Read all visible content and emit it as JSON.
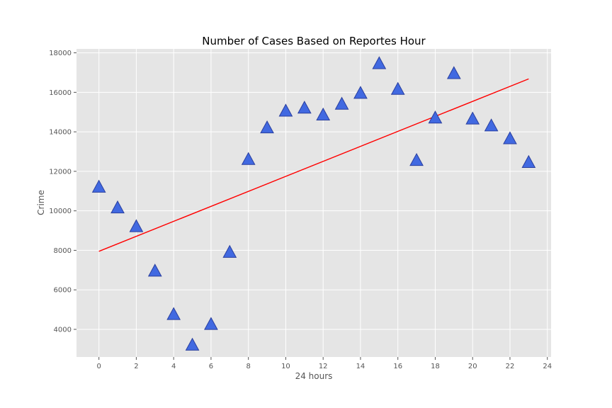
{
  "chart_data": {
    "type": "scatter",
    "title": "Number of Cases Based on Reportes Hour",
    "xlabel": "24 hours",
    "ylabel": "Crime",
    "xlim": [
      -1.2,
      24.2
    ],
    "ylim": [
      2600,
      18200
    ],
    "x_ticks": [
      0,
      2,
      4,
      6,
      8,
      10,
      12,
      14,
      16,
      18,
      20,
      22,
      24
    ],
    "y_ticks": [
      4000,
      6000,
      8000,
      10000,
      12000,
      14000,
      16000,
      18000
    ],
    "grid": true,
    "marker": "triangle",
    "colors": {
      "background": "#e5e5e5",
      "grid": "#ffffff",
      "marker_fill": "#4169e1",
      "marker_edge": "#2a3f9e",
      "trendline": "#ff0000"
    },
    "series": [
      {
        "x": [
          0,
          1,
          2,
          3,
          4,
          5,
          6,
          7,
          8,
          9,
          10,
          11,
          12,
          13,
          14,
          15,
          16,
          17,
          18,
          19,
          20,
          21,
          22,
          23
        ],
        "y": [
          11200,
          10150,
          9200,
          6950,
          4750,
          3200,
          4250,
          7900,
          12600,
          14200,
          15050,
          15200,
          14850,
          15400,
          15950,
          17450,
          16150,
          12550,
          14700,
          16950,
          14650,
          14300,
          13650,
          12450
        ]
      }
    ],
    "trendline": {
      "x": [
        0,
        23
      ],
      "y": [
        7950,
        16680
      ]
    }
  }
}
